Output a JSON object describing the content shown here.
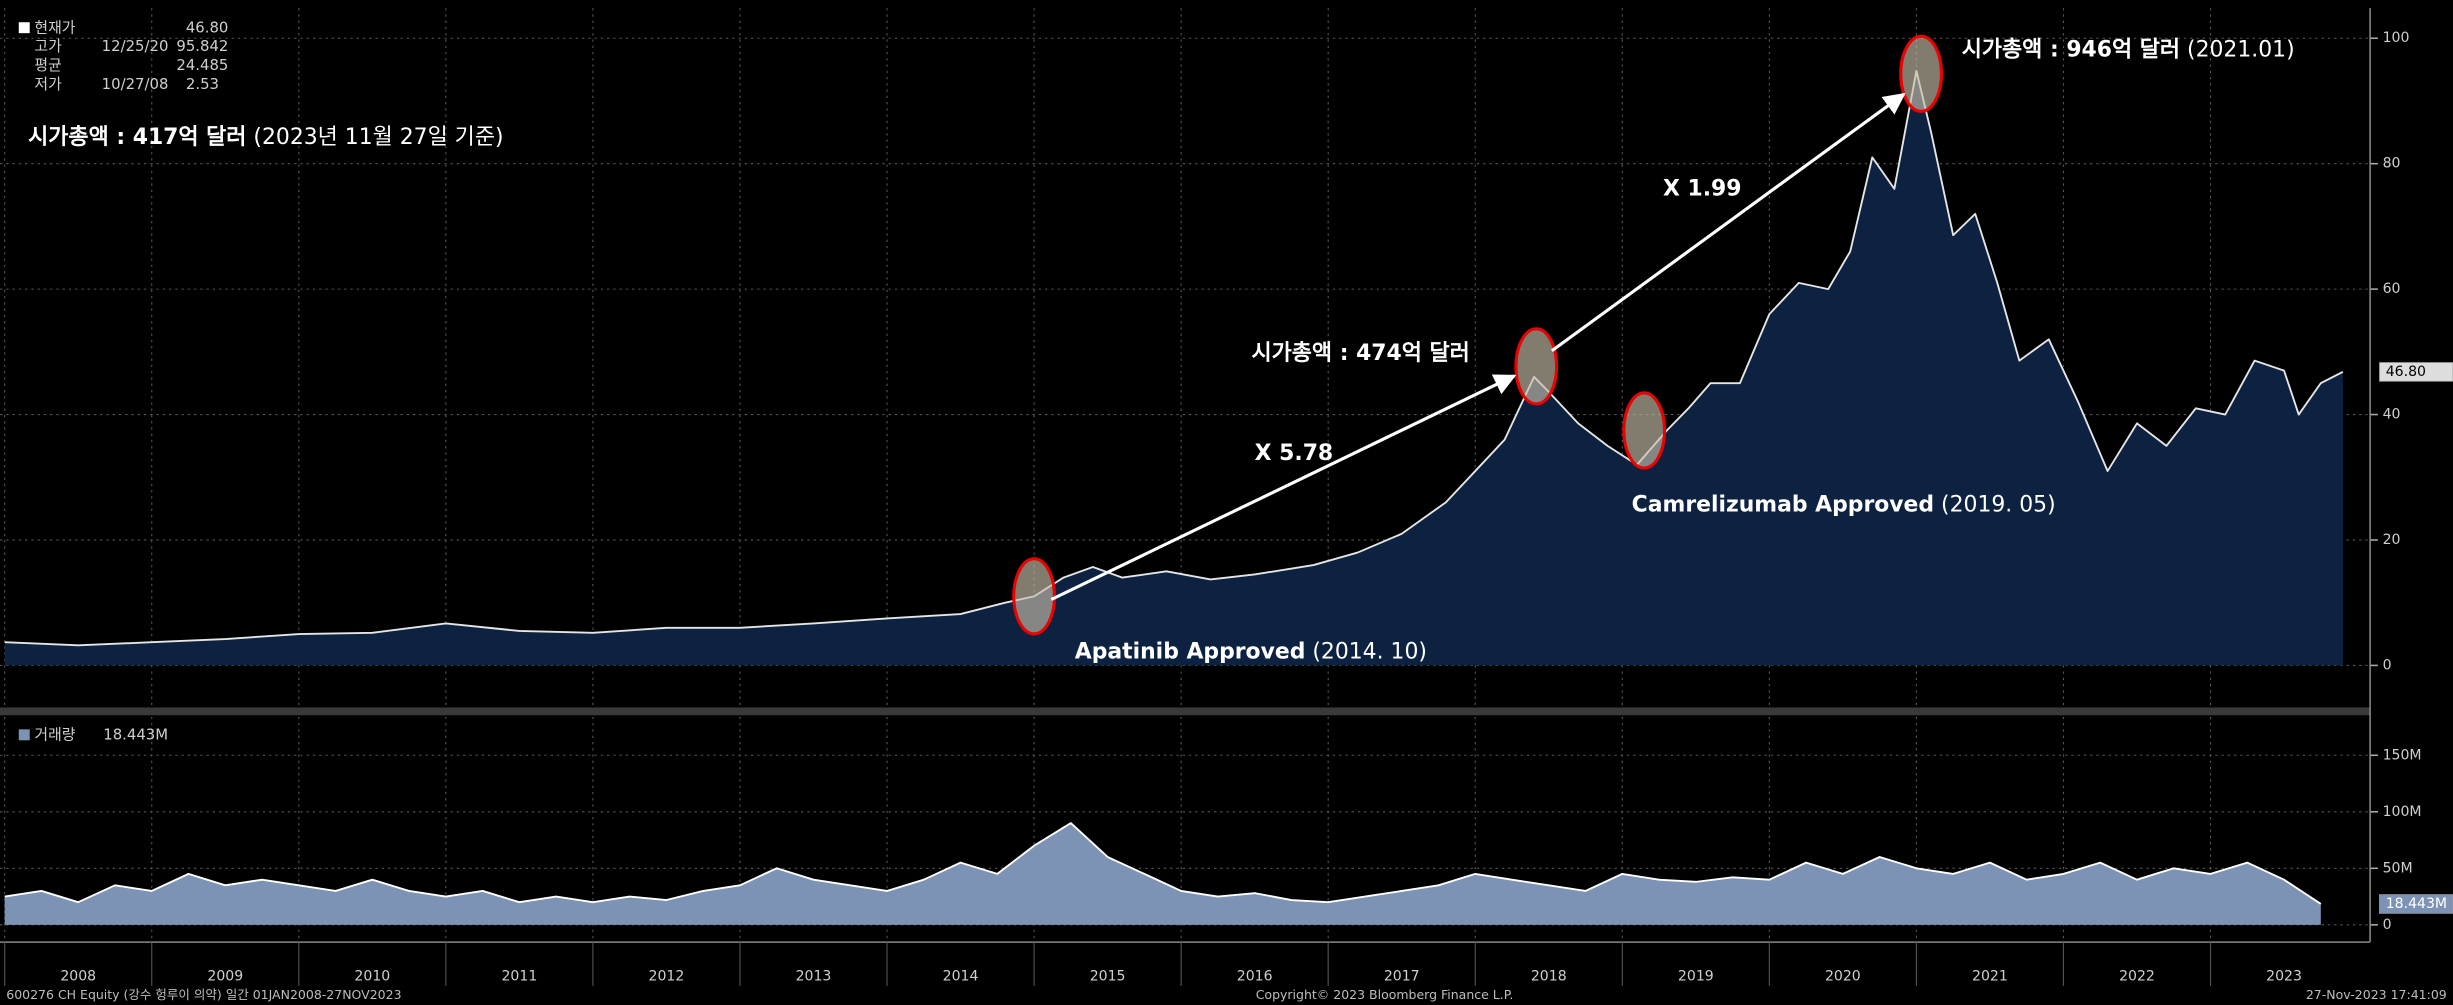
{
  "header": {
    "legend": [
      {
        "name": "현재가",
        "value": {
          "value": 46.8,
          "label": "46.80"
        }
      },
      {
        "name": "고가",
        "date": "12/25/20",
        "value": 95.842
      },
      {
        "name": "평균",
        "value": 24.485
      },
      {
        "name": "저가",
        "date": "10/27/08",
        "value": 2.53
      }
    ],
    "market_cap_now": {
      "bold": "시가총액 : 417억 달러",
      "note": "(2023년 11월 27일 기준)"
    }
  },
  "annotations": {
    "peak": {
      "bold": "시가총액 : 946억 달러",
      "note": "(2021.01)"
    },
    "mid": {
      "bold": "시가총액 : 474억 달러"
    },
    "ratio_1": "X 5.78",
    "ratio_2": "X 1.99",
    "camrelizumab": {
      "bold": "Camrelizumab Approved",
      "note": "(2019. 05)"
    },
    "apatinib": {
      "bold": "Apatinib Approved",
      "note": "(2014. 10)"
    }
  },
  "footer": {
    "left": "600276 CH Equity (강수 헝루이 의약)  일간 01JAN2008-27NOV2023",
    "center": "Copyright© 2023 Bloomberg Finance L.P.",
    "right": "27-Nov-2023 17:41:09"
  },
  "chart_data": [
    {
      "type": "area",
      "xlim": [
        2008,
        2024
      ],
      "ylim": [
        -6.7,
        104.8
      ],
      "yticks": [
        0,
        20,
        40,
        60,
        80,
        100
      ],
      "grid": true,
      "current": {
        "value": 46.8,
        "label": "46.80"
      },
      "x": [
        2008.0,
        2008.5,
        2009.0,
        2009.5,
        2010.0,
        2010.5,
        2011.0,
        2011.5,
        2012.0,
        2012.5,
        2013.0,
        2013.5,
        2014.0,
        2014.5,
        2014.8,
        2015.0,
        2015.2,
        2015.4,
        2015.6,
        2015.9,
        2016.2,
        2016.5,
        2016.9,
        2017.2,
        2017.5,
        2017.8,
        2018.0,
        2018.2,
        2018.4,
        2018.5,
        2018.7,
        2018.9,
        2019.1,
        2019.3,
        2019.45,
        2019.6,
        2019.8,
        2020.0,
        2020.2,
        2020.4,
        2020.55,
        2020.7,
        2020.85,
        2021.0,
        2021.1,
        2021.25,
        2021.4,
        2021.55,
        2021.7,
        2021.9,
        2022.1,
        2022.3,
        2022.5,
        2022.7,
        2022.9,
        2023.1,
        2023.3,
        2023.5,
        2023.6,
        2023.75,
        2023.9
      ],
      "series": [
        {
          "color": "#e6e6e6",
          "fill": "#0c2240",
          "values": [
            3.7,
            3.2,
            3.7,
            4.2,
            5,
            5.2,
            6.7,
            5.5,
            5.2,
            6,
            6,
            6.7,
            7.5,
            8.2,
            10,
            11,
            14,
            15.7,
            14,
            15,
            13.7,
            14.5,
            16,
            18,
            21,
            26,
            31,
            36,
            46,
            43.6,
            38.6,
            35,
            32,
            37.4,
            41,
            45,
            45,
            56,
            61,
            60,
            66,
            81,
            76,
            94.8,
            85,
            68.6,
            72,
            61,
            48.6,
            52,
            42,
            31,
            38.6,
            35,
            41,
            40,
            48.6,
            47,
            40,
            45,
            46.8
          ]
        }
      ]
    },
    {
      "type": "area",
      "legend": "거래량",
      "xlim": [
        2008,
        2024
      ],
      "xticks": [
        2008,
        2009,
        2010,
        2011,
        2012,
        2013,
        2014,
        2015,
        2016,
        2017,
        2018,
        2019,
        2020,
        2021,
        2022,
        2023
      ],
      "ylim": [
        -12.5,
        184
      ],
      "yticks": [
        0,
        {
          "value": 50,
          "label": "50M"
        },
        {
          "value": 100,
          "label": "100M"
        },
        {
          "value": 150,
          "label": "150M"
        }
      ],
      "grid": true,
      "current": {
        "value": 18.443,
        "label": "18.443M"
      },
      "x": [
        2008,
        2008.25,
        2008.5,
        2008.75,
        2009,
        2009.25,
        2009.5,
        2009.75,
        2010,
        2010.25,
        2010.5,
        2010.75,
        2011,
        2011.25,
        2011.5,
        2011.75,
        2012,
        2012.25,
        2012.5,
        2012.75,
        2013,
        2013.25,
        2013.5,
        2013.75,
        2014,
        2014.25,
        2014.5,
        2014.75,
        2015,
        2015.25,
        2015.5,
        2015.75,
        2016,
        2016.25,
        2016.5,
        2016.75,
        2017,
        2017.25,
        2017.5,
        2017.75,
        2018,
        2018.25,
        2018.5,
        2018.75,
        2019,
        2019.25,
        2019.5,
        2019.75,
        2020,
        2020.25,
        2020.5,
        2020.75,
        2021,
        2021.25,
        2021.5,
        2021.75,
        2022,
        2022.25,
        2022.5,
        2022.75,
        2023,
        2023.25,
        2023.5,
        2023.75
      ],
      "series": [
        {
          "color": "#ffffff",
          "fill": "#7d93b6",
          "values": [
            25,
            30,
            20,
            35,
            30,
            45,
            35,
            40,
            35,
            30,
            40,
            30,
            25,
            30,
            20,
            25,
            20,
            25,
            22,
            30,
            35,
            50,
            40,
            35,
            30,
            40,
            55,
            45,
            70,
            90,
            60,
            45,
            30,
            25,
            28,
            22,
            20,
            25,
            30,
            35,
            45,
            40,
            35,
            30,
            45,
            40,
            38,
            42,
            40,
            55,
            45,
            60,
            50,
            45,
            55,
            40,
            45,
            55,
            40,
            50,
            45,
            55,
            40,
            18.443
          ]
        }
      ]
    }
  ]
}
